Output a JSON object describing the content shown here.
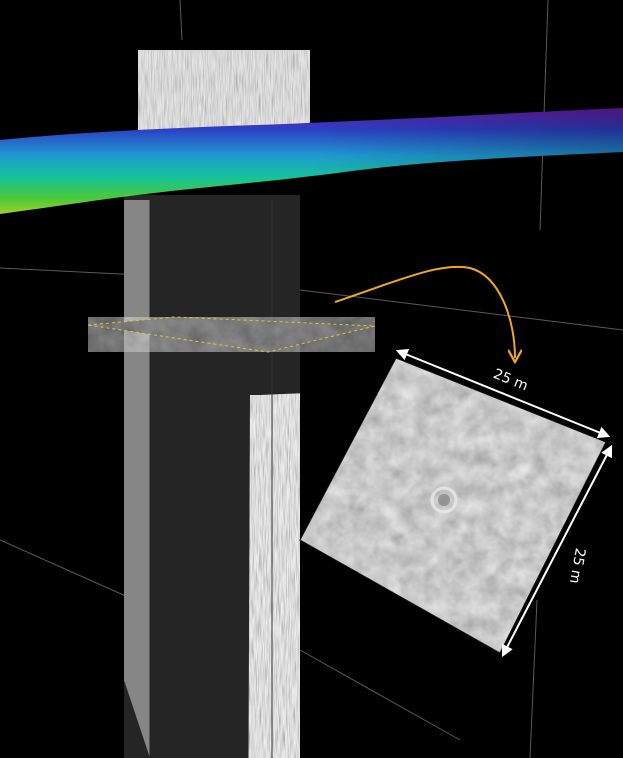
{
  "figure": {
    "dimension_top": "25 m",
    "dimension_right": "25 m",
    "colors": {
      "background": "#000000",
      "arrow": "#f2a81d",
      "dimension": "#ffffff",
      "gridline": "#5a5a5a",
      "horizon_gradient": [
        "#6a1aa8",
        "#2d3fc4",
        "#1f9bd1",
        "#15c29a",
        "#4ac93a",
        "#9ed02a"
      ]
    },
    "elements": [
      "gpr-radargram-vertical-section",
      "gpr-horizon-surface",
      "gpr-time-slice",
      "zoomed-time-slice",
      "arrow-to-zoom"
    ]
  }
}
